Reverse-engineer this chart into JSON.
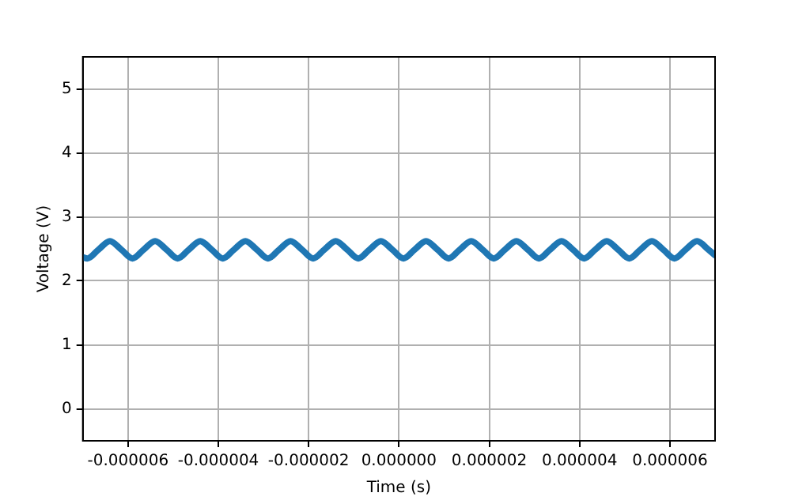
{
  "chart_data": {
    "type": "line",
    "xlabel": "Time (s)",
    "ylabel": "Voltage (V)",
    "x": [
      -7e-06,
      -6.9e-06,
      -6.65e-06,
      -6.4e-06,
      -6.15e-06,
      -5.9e-06,
      -5.65e-06,
      -5.4e-06,
      -5.15e-06,
      -4.9e-06,
      -4.65e-06,
      -4.4e-06,
      -4.15e-06,
      -3.9e-06,
      -3.65e-06,
      -3.4e-06,
      -3.15e-06,
      -2.9e-06,
      -2.65e-06,
      -2.4e-06,
      -2.15e-06,
      -1.9e-06,
      -1.65e-06,
      -1.4e-06,
      -1.15e-06,
      -9e-07,
      -6.5e-07,
      -4e-07,
      -1.5e-07,
      1e-07,
      3.5e-07,
      6e-07,
      8.5e-07,
      1.1e-06,
      1.35e-06,
      1.6e-06,
      1.85e-06,
      2.1e-06,
      2.35e-06,
      2.6e-06,
      2.85e-06,
      3.1e-06,
      3.35e-06,
      3.6e-06,
      3.85e-06,
      4.1e-06,
      4.35e-06,
      4.6e-06,
      4.85e-06,
      5.1e-06,
      5.35e-06,
      5.6e-06,
      5.85e-06,
      6.1e-06,
      6.35e-06,
      6.6e-06,
      6.85e-06,
      7e-06
    ],
    "series": [
      {
        "color": "#1f77b4",
        "values": [
          2.37,
          2.35,
          2.49,
          2.62,
          2.49,
          2.35,
          2.49,
          2.62,
          2.49,
          2.35,
          2.49,
          2.62,
          2.49,
          2.35,
          2.49,
          2.62,
          2.49,
          2.35,
          2.49,
          2.62,
          2.49,
          2.35,
          2.49,
          2.62,
          2.49,
          2.35,
          2.49,
          2.62,
          2.49,
          2.35,
          2.49,
          2.62,
          2.49,
          2.35,
          2.49,
          2.62,
          2.49,
          2.35,
          2.49,
          2.62,
          2.49,
          2.35,
          2.49,
          2.62,
          2.49,
          2.35,
          2.49,
          2.62,
          2.49,
          2.35,
          2.49,
          2.62,
          2.49,
          2.35,
          2.49,
          2.62,
          2.49,
          2.4
        ]
      }
    ],
    "xlim": [
      -7e-06,
      7e-06
    ],
    "xticks": [
      {
        "value": -6e-06,
        "label": "-0.000006"
      },
      {
        "value": -4e-06,
        "label": "-0.000004"
      },
      {
        "value": -2e-06,
        "label": "-0.000002"
      },
      {
        "value": 0,
        "label": "0.000000"
      },
      {
        "value": 2e-06,
        "label": "0.000002"
      },
      {
        "value": 4e-06,
        "label": "0.000004"
      },
      {
        "value": 6e-06,
        "label": "0.000006"
      }
    ],
    "ylim": [
      -0.5,
      5.5
    ],
    "yticks": [
      0,
      1,
      2,
      3,
      4,
      5
    ],
    "grid": true,
    "legend": false,
    "marker": "none",
    "line_style": "solid"
  }
}
